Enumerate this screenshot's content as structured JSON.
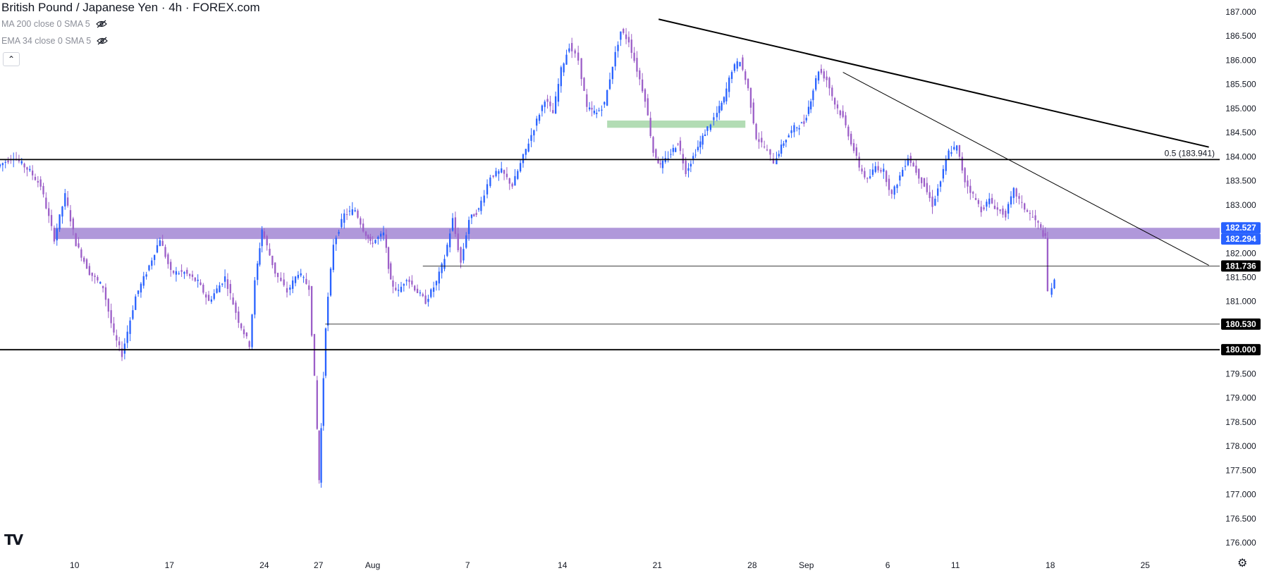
{
  "chart": {
    "title": "British Pound / Japanese Yen · 4h · FOREX.com"
  },
  "indicators": [
    {
      "label": "MA 200 close 0 SMA 5",
      "icon": "eye-off-icon"
    },
    {
      "label": "EMA 34 close 0 SMA 5",
      "icon": "eye-off-icon"
    }
  ],
  "controls": {
    "collapse": "⌃",
    "logo": "TV",
    "settings": "⚙"
  },
  "colors": {
    "up": "#2962ff",
    "down": "#9c5fc8",
    "zone": "#9575cd",
    "green_zone": "#a5d6a7",
    "label_blue": "#2962ff",
    "label_black": "#000000",
    "axis_text": "#131722"
  },
  "chart_data": {
    "type": "candlestick",
    "y_axis_ticks": [
      187.0,
      186.5,
      186.0,
      185.5,
      185.0,
      184.5,
      184.0,
      183.5,
      183.0,
      182.5,
      182.0,
      181.5,
      181.0,
      180.5,
      180.0,
      179.5,
      179.0,
      178.5,
      178.0,
      177.5,
      177.0,
      176.5,
      176.0
    ],
    "y_axis_tick_labels": [
      "187.000",
      "186.500",
      "186.000",
      "185.500",
      "185.000",
      "184.500",
      "184.000",
      "183.500",
      "183.000",
      "",
      "182.000",
      "181.500",
      "181.000",
      "",
      "",
      "179.500",
      "179.000",
      "178.500",
      "178.000",
      "177.500",
      "177.000",
      "176.500",
      "176.000"
    ],
    "ylim": [
      175.8,
      187.3
    ],
    "x_axis_labels": [
      {
        "label": "10",
        "day": 9.5
      },
      {
        "label": "17",
        "day": 16.5
      },
      {
        "label": "24",
        "day": 23.5
      },
      {
        "label": "27",
        "day": 27.5
      },
      {
        "label": "Aug",
        "day": 31.5
      },
      {
        "label": "7",
        "day": 38.5
      },
      {
        "label": "14",
        "day": 45.5
      },
      {
        "label": "21",
        "day": 52.5
      },
      {
        "label": "28",
        "day": 59.5
      },
      {
        "label": "Sep",
        "day": 63.5
      },
      {
        "label": "6",
        "day": 69.5
      },
      {
        "label": "11",
        "day": 74.5
      },
      {
        "label": "18",
        "day": 81.5
      },
      {
        "label": "25",
        "day": 88.5
      }
    ],
    "xlim": [
      4,
      94
    ],
    "candle_anchors": [
      [
        4.0,
        183.8
      ],
      [
        5.2,
        184.0
      ],
      [
        6.4,
        183.7
      ],
      [
        7.2,
        183.4
      ],
      [
        8.2,
        182.3
      ],
      [
        9.0,
        183.2
      ],
      [
        9.8,
        182.2
      ],
      [
        10.8,
        181.6
      ],
      [
        11.8,
        181.3
      ],
      [
        12.6,
        180.3
      ],
      [
        13.2,
        179.9
      ],
      [
        14.2,
        181.1
      ],
      [
        15.0,
        181.6
      ],
      [
        16.0,
        182.3
      ],
      [
        16.8,
        181.6
      ],
      [
        17.8,
        181.6
      ],
      [
        18.8,
        181.4
      ],
      [
        19.6,
        181.0
      ],
      [
        20.8,
        181.5
      ],
      [
        21.8,
        180.6
      ],
      [
        22.6,
        180.1
      ],
      [
        23.0,
        181.4
      ],
      [
        23.5,
        182.5
      ],
      [
        24.5,
        181.6
      ],
      [
        25.4,
        181.2
      ],
      [
        26.2,
        181.6
      ],
      [
        27.0,
        181.3
      ],
      [
        27.4,
        179.4
      ],
      [
        27.7,
        177.3
      ],
      [
        28.2,
        180.5
      ],
      [
        28.8,
        182.2
      ],
      [
        29.6,
        182.8
      ],
      [
        30.4,
        182.9
      ],
      [
        31.0,
        182.5
      ],
      [
        31.5,
        182.2
      ],
      [
        32.5,
        182.4
      ],
      [
        33.0,
        181.4
      ],
      [
        33.6,
        181.2
      ],
      [
        34.2,
        181.5
      ],
      [
        35.0,
        181.2
      ],
      [
        35.6,
        181.0
      ],
      [
        36.4,
        181.4
      ],
      [
        37.0,
        181.9
      ],
      [
        37.6,
        182.7
      ],
      [
        38.2,
        181.8
      ],
      [
        38.8,
        182.7
      ],
      [
        39.5,
        182.9
      ],
      [
        40.4,
        183.6
      ],
      [
        41.2,
        183.7
      ],
      [
        42.0,
        183.4
      ],
      [
        42.8,
        184.0
      ],
      [
        43.6,
        184.6
      ],
      [
        44.4,
        185.2
      ],
      [
        45.0,
        184.9
      ],
      [
        45.6,
        185.8
      ],
      [
        46.2,
        186.3
      ],
      [
        46.9,
        186.0
      ],
      [
        47.5,
        185.0
      ],
      [
        48.2,
        184.9
      ],
      [
        48.8,
        185.1
      ],
      [
        49.4,
        185.9
      ],
      [
        50.0,
        186.6
      ],
      [
        50.6,
        186.4
      ],
      [
        51.2,
        185.8
      ],
      [
        51.8,
        185.2
      ],
      [
        52.4,
        184.1
      ],
      [
        52.9,
        183.8
      ],
      [
        53.5,
        184.0
      ],
      [
        54.2,
        184.3
      ],
      [
        54.8,
        183.7
      ],
      [
        55.5,
        184.1
      ],
      [
        56.2,
        184.5
      ],
      [
        56.9,
        184.8
      ],
      [
        57.6,
        185.2
      ],
      [
        58.2,
        185.8
      ],
      [
        58.8,
        186.0
      ],
      [
        59.4,
        185.4
      ],
      [
        60.0,
        184.4
      ],
      [
        60.6,
        184.2
      ],
      [
        61.3,
        183.9
      ],
      [
        62.0,
        184.3
      ],
      [
        62.8,
        184.6
      ],
      [
        63.5,
        184.7
      ],
      [
        64.0,
        185.2
      ],
      [
        64.6,
        185.8
      ],
      [
        65.2,
        185.6
      ],
      [
        65.8,
        185.1
      ],
      [
        66.4,
        184.8
      ],
      [
        67.0,
        184.3
      ],
      [
        67.6,
        183.8
      ],
      [
        68.2,
        183.5
      ],
      [
        68.8,
        183.8
      ],
      [
        69.4,
        183.7
      ],
      [
        70.0,
        183.2
      ],
      [
        70.6,
        183.6
      ],
      [
        71.2,
        184.0
      ],
      [
        71.8,
        183.7
      ],
      [
        72.4,
        183.4
      ],
      [
        73.0,
        183.0
      ],
      [
        73.6,
        183.5
      ],
      [
        74.2,
        184.1
      ],
      [
        74.8,
        184.2
      ],
      [
        75.4,
        183.5
      ],
      [
        76.0,
        183.2
      ],
      [
        76.6,
        182.9
      ],
      [
        77.2,
        183.1
      ],
      [
        77.8,
        182.9
      ],
      [
        78.4,
        182.8
      ],
      [
        79.0,
        183.3
      ],
      [
        79.6,
        183.0
      ],
      [
        80.2,
        182.8
      ],
      [
        80.8,
        182.6
      ],
      [
        81.3,
        182.3
      ],
      [
        81.6,
        181.2
      ],
      [
        82.0,
        181.4
      ]
    ],
    "levels": [
      {
        "name": "fib-0.5",
        "value": 183.941,
        "label": "0.5 (183.941)",
        "style": "thick-black"
      },
      {
        "name": "round-180",
        "value": 180.0,
        "label": "180.000",
        "style": "thick-black"
      },
      {
        "name": "support-180530",
        "value": 180.53,
        "label": "180.530",
        "from_day": 28.0,
        "style": "thin"
      },
      {
        "name": "level-181736",
        "value": 181.736,
        "label": "181.736",
        "from_day": 35.2,
        "style": "thin"
      }
    ],
    "zones": [
      {
        "name": "zone-182",
        "from": 182.294,
        "to": 182.527,
        "label_top": "182.527",
        "label_bottom": "182.294",
        "from_day": 8.0
      },
      {
        "name": "zone-green",
        "from": 184.6,
        "to": 184.75,
        "from_day": 48.8,
        "to_day": 59.0
      }
    ],
    "trendlines": [
      {
        "name": "trendline-major",
        "points": [
          [
            52.6,
            186.85
          ],
          [
            93.2,
            184.2
          ]
        ],
        "width": 2
      },
      {
        "name": "trendline-minor",
        "points": [
          [
            66.2,
            185.75
          ],
          [
            93.2,
            181.75
          ]
        ],
        "width": 1
      }
    ]
  }
}
